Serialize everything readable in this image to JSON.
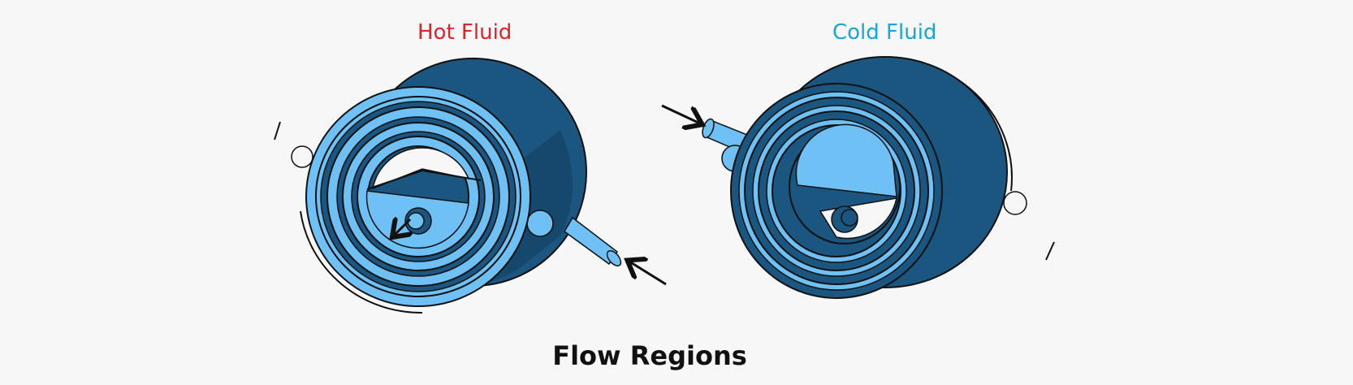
{
  "labels": {
    "hot": "Hot Fluid",
    "cold": "Cold Fluid"
  },
  "caption": "Flow Regions",
  "colors": {
    "hot_label": "#d9262e",
    "cold_label": "#1aa3dc",
    "fluid_light": "#6ec0f5",
    "shell_dark": "#1b5680",
    "shell_darker": "#143f60",
    "outline": "#111111",
    "background": "#f7f7f7"
  }
}
